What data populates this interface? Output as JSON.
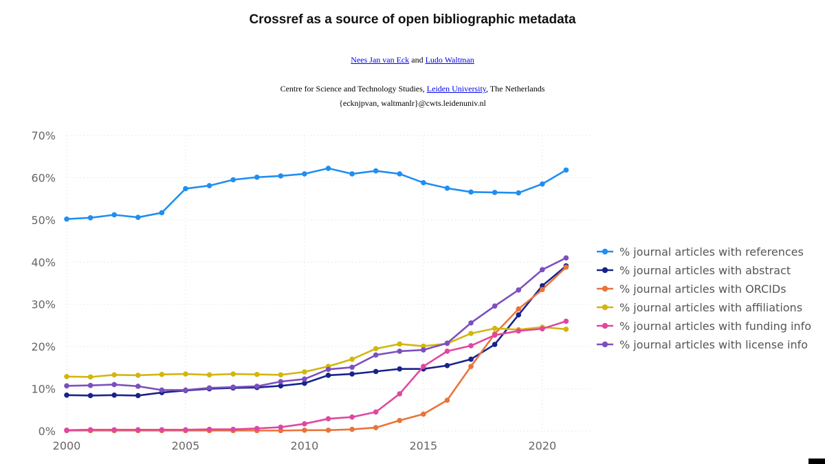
{
  "header": {
    "title": "Crossref as a source of open bibliographic metadata",
    "author1": "Nees Jan van Eck",
    "and": " and ",
    "author2": "Ludo Waltman",
    "affil_prefix": "Centre for Science and Technology Studies, ",
    "affil_link": "Leiden University",
    "affil_suffix": ", The Netherlands",
    "email": "{ecknjpvan, waltmanlr}@cwts.leidenuniv.nl"
  },
  "chart_data": {
    "type": "line",
    "title": "",
    "xlabel": "",
    "ylabel": "",
    "x": [
      2000,
      2001,
      2002,
      2003,
      2004,
      2005,
      2006,
      2007,
      2008,
      2009,
      2010,
      2011,
      2012,
      2013,
      2014,
      2015,
      2016,
      2017,
      2018,
      2019,
      2020,
      2021
    ],
    "xlim": [
      2000,
      2022
    ],
    "ylim": [
      0,
      70
    ],
    "x_ticks": [
      2000,
      2005,
      2010,
      2015,
      2020
    ],
    "y_ticks": [
      0,
      10,
      20,
      30,
      40,
      50,
      60,
      70
    ],
    "y_tick_labels": [
      "0%",
      "10%",
      "20%",
      "30%",
      "40%",
      "50%",
      "60%",
      "70%"
    ],
    "grid": true,
    "legend_position": "right",
    "series": [
      {
        "name": "% journal articles with references",
        "color": "#1f8ef1",
        "values": [
          50.2,
          50.5,
          51.2,
          50.6,
          51.7,
          57.4,
          58.1,
          59.5,
          60.1,
          60.4,
          60.9,
          62.2,
          60.9,
          61.6,
          60.9,
          58.8,
          57.5,
          56.6,
          56.5,
          56.4,
          58.5,
          61.8
        ]
      },
      {
        "name": "% journal articles with abstract",
        "color": "#17238a",
        "values": [
          8.5,
          8.4,
          8.5,
          8.4,
          9.1,
          9.6,
          10.0,
          10.2,
          10.3,
          10.7,
          11.3,
          13.2,
          13.5,
          14.1,
          14.7,
          14.7,
          15.5,
          17.0,
          20.5,
          27.5,
          34.4,
          39.1
        ]
      },
      {
        "name": "% journal articles with ORCIDs",
        "color": "#e8743b",
        "values": [
          0.1,
          0.1,
          0.1,
          0.1,
          0.1,
          0.1,
          0.1,
          0.1,
          0.1,
          0.1,
          0.2,
          0.2,
          0.4,
          0.8,
          2.5,
          4.0,
          7.3,
          15.3,
          23.0,
          28.9,
          33.5,
          38.8
        ]
      },
      {
        "name": "% journal articles with affiliations",
        "color": "#d2b60f",
        "values": [
          12.9,
          12.8,
          13.3,
          13.2,
          13.4,
          13.5,
          13.3,
          13.5,
          13.4,
          13.3,
          14.0,
          15.3,
          17.0,
          19.5,
          20.6,
          20.1,
          20.7,
          23.1,
          24.3,
          24.0,
          24.6,
          24.1
        ]
      },
      {
        "name": "% journal articles with funding info",
        "color": "#e0479e",
        "values": [
          0.2,
          0.3,
          0.3,
          0.3,
          0.3,
          0.3,
          0.4,
          0.4,
          0.6,
          0.9,
          1.7,
          2.9,
          3.3,
          4.5,
          8.8,
          15.3,
          18.9,
          20.2,
          22.7,
          23.7,
          24.2,
          26.0
        ]
      },
      {
        "name": "% journal articles with license info",
        "color": "#7b4fbf",
        "values": [
          10.7,
          10.8,
          11.0,
          10.6,
          9.7,
          9.7,
          10.2,
          10.4,
          10.6,
          11.7,
          12.3,
          14.6,
          15.1,
          18.0,
          18.9,
          19.2,
          20.8,
          25.6,
          29.6,
          33.4,
          38.2,
          41.0
        ]
      }
    ]
  }
}
